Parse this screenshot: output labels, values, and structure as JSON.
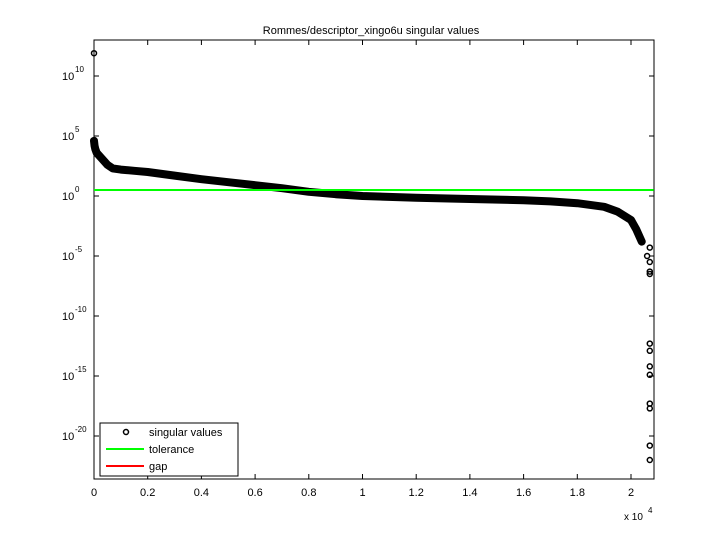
{
  "chart_data": {
    "type": "scatter",
    "title": "Rommes/descriptor_xingo6u singular values",
    "xlabel": "",
    "ylabel": "",
    "x_multiplier_label": "x 10",
    "x_multiplier_exp": "4",
    "xlim": [
      0,
      20738
    ],
    "ylim_log10": [
      -23.6,
      13
    ],
    "yscale": "log",
    "grid": false,
    "legend_position": "lower left",
    "x_ticks": [
      "0",
      "0.2",
      "0.4",
      "0.6",
      "0.8",
      "1",
      "1.2",
      "1.4",
      "1.6",
      "1.8",
      "2"
    ],
    "x_tick_values": [
      0,
      0.2,
      0.4,
      0.6,
      0.8,
      1.0,
      1.2,
      1.4,
      1.6,
      1.8,
      2.0
    ],
    "y_ticks": [
      {
        "base": "10",
        "exp": "10",
        "log10": 10
      },
      {
        "base": "10",
        "exp": "5",
        "log10": 5
      },
      {
        "base": "10",
        "exp": "0",
        "log10": 0
      },
      {
        "base": "10",
        "exp": "-5",
        "log10": -5
      },
      {
        "base": "10",
        "exp": "-10",
        "log10": -10
      },
      {
        "base": "10",
        "exp": "-15",
        "log10": -15
      },
      {
        "base": "10",
        "exp": "-20",
        "log10": -20
      }
    ],
    "series": [
      {
        "name": "singular values",
        "style": "circle-markers",
        "color": "#000000",
        "x_scaled": [
          0.0,
          0.0,
          0.002,
          0.005,
          0.01,
          0.03,
          0.05,
          0.07,
          0.1,
          0.15,
          0.2,
          0.3,
          0.4,
          0.5,
          0.6,
          0.7,
          0.8,
          0.9,
          1.0,
          1.2,
          1.4,
          1.6,
          1.7,
          1.8,
          1.9,
          1.95,
          2.0,
          2.02,
          2.04,
          2.06,
          2.07,
          2.07,
          2.07
        ],
        "log10_values": [
          11.9,
          4.6,
          4.2,
          3.9,
          3.6,
          3.1,
          2.6,
          2.3,
          2.2,
          2.1,
          2.0,
          1.7,
          1.4,
          1.15,
          0.9,
          0.65,
          0.35,
          0.15,
          0.0,
          -0.15,
          -0.25,
          -0.35,
          -0.45,
          -0.6,
          -0.9,
          -1.3,
          -2.0,
          -2.8,
          -3.8,
          -5.0,
          -6.5,
          -5.5,
          -4.3
        ]
      },
      {
        "name": "singular values (tail outliers)",
        "style": "circle-markers",
        "color": "#000000",
        "x_scaled": [
          2.07,
          2.07,
          2.07,
          2.07,
          2.07,
          2.07,
          2.07,
          2.07,
          2.07
        ],
        "log10_values": [
          -6.3,
          -12.3,
          -12.9,
          -14.2,
          -14.9,
          -17.3,
          -17.7,
          -20.8,
          -22.0
        ]
      },
      {
        "name": "tolerance",
        "style": "line",
        "color": "#00ff00",
        "x_scaled": [
          0,
          2.085
        ],
        "log10_values": [
          0.5,
          0.5
        ]
      },
      {
        "name": "gap",
        "style": "line",
        "color": "#ff0000",
        "x_scaled": [],
        "log10_values": []
      }
    ],
    "legend": [
      {
        "label": "singular values",
        "marker": "circle",
        "color": "#000000"
      },
      {
        "label": "tolerance",
        "marker": "line",
        "color": "#00ff00"
      },
      {
        "label": "gap",
        "marker": "line",
        "color": "#ff0000"
      }
    ]
  }
}
